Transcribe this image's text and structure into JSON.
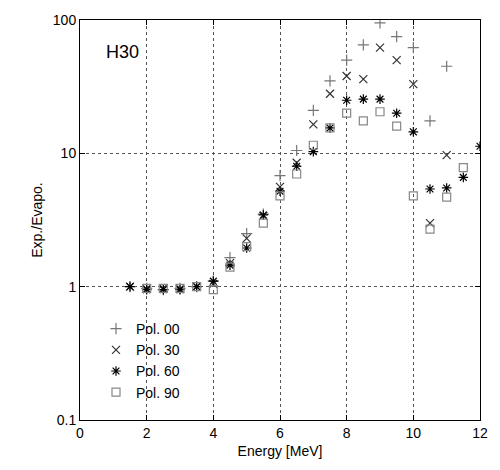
{
  "chart_data": {
    "type": "scatter",
    "title": "H30",
    "x_label": "Energy [MeV]",
    "y_label": "Exp./Evapo.",
    "x": [
      1.5,
      2.0,
      2.5,
      3.0,
      3.5,
      4.0,
      4.5,
      5.0,
      5.5,
      6.0,
      6.5,
      7.0,
      7.5,
      8.0,
      8.5,
      9.0,
      9.5,
      10.0,
      10.5,
      11.0,
      11.5,
      12.0
    ],
    "series": [
      {
        "name": "Pol. 00",
        "color": "#777777",
        "marker": "plus",
        "values": [
          1.0,
          0.97,
          0.95,
          0.97,
          1.0,
          1.1,
          1.65,
          2.5,
          3.5,
          6.8,
          10.5,
          21,
          35,
          50,
          65,
          95,
          75,
          62,
          17.5,
          45,
          null,
          null
        ]
      },
      {
        "name": "Pol. 30",
        "color": "#333333",
        "marker": "x",
        "values": [
          1.0,
          0.96,
          0.97,
          0.96,
          1.0,
          1.05,
          1.5,
          2.3,
          3.4,
          5.6,
          8.5,
          16.5,
          28,
          38,
          36,
          62,
          50,
          33,
          3.0,
          9.7,
          null,
          null
        ]
      },
      {
        "name": "Pol. 60",
        "color": "#000000",
        "marker": "asterisk",
        "values": [
          1.0,
          0.95,
          0.95,
          0.95,
          1.0,
          1.1,
          1.45,
          1.95,
          3.45,
          5.2,
          8.0,
          10.3,
          15.5,
          25,
          25.5,
          25.5,
          20,
          14.5,
          5.4,
          5.5,
          6.6,
          11.3
        ]
      },
      {
        "name": "Pol. 90",
        "color": "#888888",
        "marker": "square-open",
        "values": [
          null,
          0.97,
          0.97,
          0.97,
          1.0,
          0.95,
          1.4,
          2.0,
          3.0,
          4.8,
          7.0,
          11.5,
          15.5,
          20,
          17.5,
          20.5,
          16,
          4.8,
          2.7,
          4.7,
          7.8,
          null
        ]
      }
    ],
    "xlim": [
      0,
      12
    ],
    "xticks": [
      0,
      2,
      4,
      6,
      8,
      10,
      12
    ],
    "ylim": [
      0.1,
      100
    ],
    "yticks": [
      0.1,
      1,
      10,
      100
    ],
    "log": "y",
    "grid": true,
    "legend": "lower left"
  }
}
